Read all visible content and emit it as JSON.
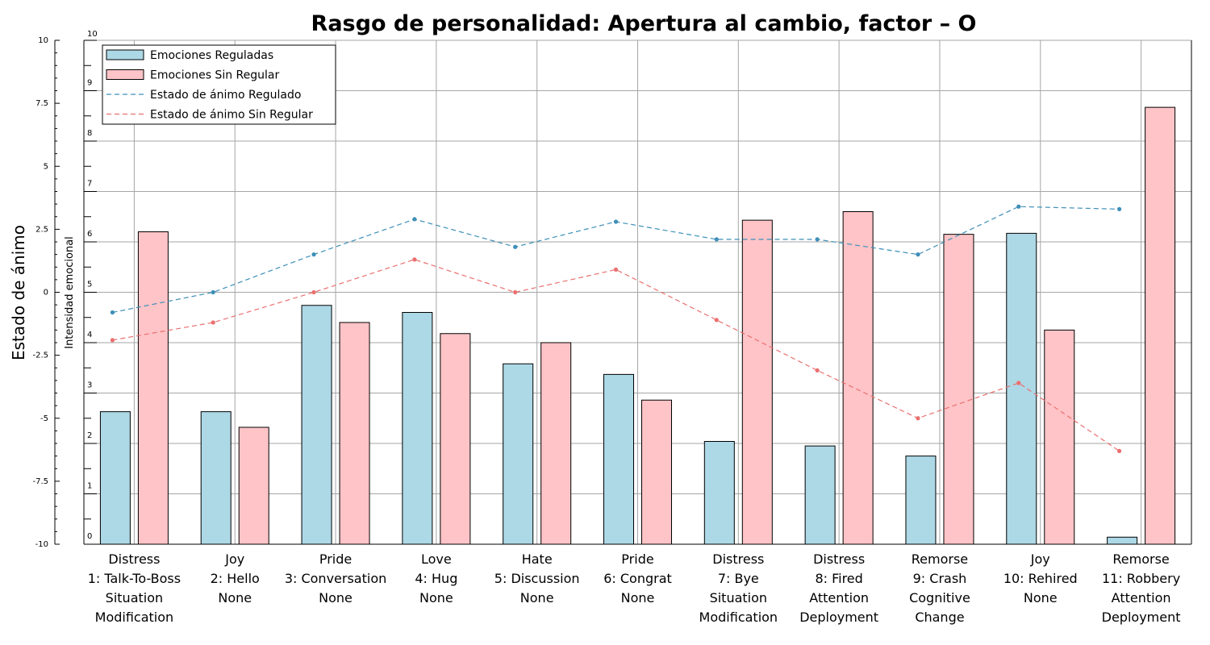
{
  "chart_data": {
    "type": "bar",
    "title": "Rasgo de personalidad: Apertura al cambio, factor – O",
    "ylabel_left": "Estado de ánimo",
    "ylabel_right": "Intensidad emocional",
    "left_axis": {
      "ylim": [
        -10,
        10
      ],
      "ticks": [
        "10",
        "7.5",
        "5",
        "2.5",
        "0",
        "-2.5",
        "-5",
        "-7.5",
        "-10"
      ]
    },
    "right_axis": {
      "ylim": [
        0,
        10
      ],
      "ticks": [
        "10",
        "9",
        "8",
        "7",
        "6",
        "5",
        "4",
        "3",
        "2",
        "1",
        "0"
      ]
    },
    "grid": true,
    "legend_position": "top-left",
    "categories": [
      [
        "Distress",
        "1: Talk-To-Boss",
        "Situation",
        "Modification"
      ],
      [
        "Joy",
        "2: Hello",
        "None"
      ],
      [
        "Pride",
        "3: Conversation",
        "None"
      ],
      [
        "Love",
        "4: Hug",
        "None"
      ],
      [
        "Hate",
        "5: Discussion",
        "None"
      ],
      [
        "Pride",
        "6: Congrat",
        "None"
      ],
      [
        "Distress",
        "7: Bye",
        "Situation",
        "Modification"
      ],
      [
        "Distress",
        "8: Fired",
        "Attention",
        "Deployment"
      ],
      [
        "Remorse",
        "9: Crash",
        "Cognitive",
        "Change"
      ],
      [
        "Joy",
        "10: Rehired",
        "None"
      ],
      [
        "Remorse",
        "11: Robbery",
        "Attention",
        "Deployment"
      ]
    ],
    "bars": [
      {
        "name": "Emociones Reguladas",
        "color": "#add8e6",
        "values": [
          2.63,
          2.63,
          4.74,
          4.6,
          3.58,
          3.37,
          2.04,
          1.95,
          1.75,
          6.17,
          0.14
        ]
      },
      {
        "name": "Emociones Sin Regular",
        "color": "#ffc4c7",
        "values": [
          6.2,
          2.32,
          4.4,
          4.18,
          4.0,
          2.86,
          6.43,
          6.6,
          6.15,
          4.25,
          8.67
        ]
      }
    ],
    "lines": [
      {
        "name": "Estado de ánimo Regulado",
        "color": "#3d8fb8",
        "values": [
          -0.8,
          0.0,
          1.5,
          2.9,
          1.8,
          2.8,
          2.1,
          2.1,
          1.5,
          3.4,
          3.3
        ]
      },
      {
        "name": "Estado de ánimo Sin Regular",
        "color": "#eb6f6f",
        "values": [
          -1.9,
          -1.2,
          0.0,
          1.3,
          0.0,
          0.9,
          -1.1,
          -3.1,
          -5.0,
          -3.6,
          -6.3
        ]
      }
    ]
  }
}
